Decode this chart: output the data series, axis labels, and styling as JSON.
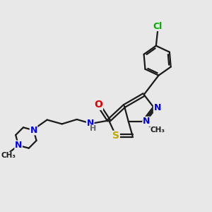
{
  "bg_color": "#e8e8e8",
  "bond_color": "#1a1a1a",
  "bond_width": 1.6,
  "atom_colors": {
    "N": "#0000ee",
    "O": "#dd0000",
    "S": "#bbaa00",
    "Cl": "#00aa00",
    "C": "#1a1a1a",
    "H": "#666666"
  },
  "xlim": [
    0,
    10
  ],
  "ylim": [
    0,
    10
  ],
  "fig_size": [
    3.0,
    3.0
  ],
  "dpi": 100
}
